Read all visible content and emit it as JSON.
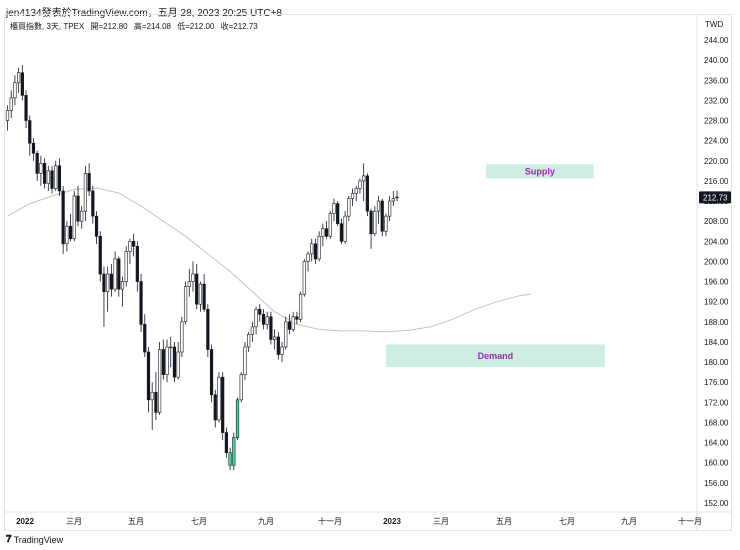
{
  "header": {
    "caption": "jen4134發表於TradingView.com，五月 28, 2023 20:25 UTC+8"
  },
  "legend": {
    "symbol": "櫃買指數, 3天, TPEX",
    "open": "開=212.80",
    "high": "高=214.08",
    "low": "低=212.00",
    "close": "收=212.73"
  },
  "currency": "TWD",
  "footer": {
    "brand": "TradingView"
  },
  "chart_data": {
    "type": "candlestick",
    "y_range": [
      150,
      246
    ],
    "y_ticks": [
      244,
      240,
      236,
      232,
      228,
      224,
      220,
      216,
      212,
      208,
      204,
      200,
      196,
      192,
      188,
      184,
      180,
      176,
      172,
      168,
      164,
      160,
      156,
      152
    ],
    "last_price_label": "212.73",
    "x_tick_labels": [
      "2022",
      "三月",
      "五月",
      "七月",
      "九月",
      "十一月",
      "2023",
      "三月",
      "五月",
      "七月",
      "九月",
      "十一月"
    ],
    "moving_average": [
      [
        0,
        209.0
      ],
      [
        6,
        211.5
      ],
      [
        12,
        213.0
      ],
      [
        18,
        214.3
      ],
      [
        24,
        214.6
      ],
      [
        30,
        213.6
      ],
      [
        36,
        211.0
      ],
      [
        42,
        208.0
      ],
      [
        48,
        205.0
      ],
      [
        54,
        201.5
      ],
      [
        60,
        198.0
      ],
      [
        66,
        194.0
      ],
      [
        72,
        190.0
      ],
      [
        78,
        187.5
      ],
      [
        84,
        186.5
      ],
      [
        90,
        186.2
      ],
      [
        96,
        186.2
      ],
      [
        102,
        186.0
      ],
      [
        108,
        186.3
      ],
      [
        114,
        187.0
      ],
      [
        120,
        188.5
      ],
      [
        126,
        190.5
      ],
      [
        132,
        192.0
      ],
      [
        138,
        193.2
      ],
      [
        141,
        193.5
      ]
    ],
    "zones": [
      {
        "label": "Supply",
        "y_low": 216.5,
        "y_high": 219.3,
        "x_from": 129,
        "x_to": 158
      },
      {
        "label": "Demand",
        "y_low": 179.0,
        "y_high": 183.5,
        "x_from": 102,
        "x_to": 161
      }
    ],
    "colors": {
      "up": "#ffffff",
      "down": "#131722",
      "wick": "#131722",
      "ma": "#c4c4c4",
      "zone_fill": "#cdece3",
      "zone_text": "#9c27b0",
      "highlight": "#4cd7a8"
    },
    "candles": [
      [
        228.0,
        231.0,
        226.0,
        230.0
      ],
      [
        230.0,
        234.0,
        228.5,
        232.5
      ],
      [
        232.5,
        237.0,
        231.0,
        235.5
      ],
      [
        235.5,
        238.5,
        233.5,
        237.5
      ],
      [
        237.5,
        239.0,
        232.0,
        233.0
      ],
      [
        233.0,
        234.0,
        226.5,
        228.0
      ],
      [
        228.0,
        229.0,
        221.0,
        223.5
      ],
      [
        223.5,
        224.5,
        220.0,
        221.5
      ],
      [
        221.5,
        222.0,
        216.0,
        217.5
      ],
      [
        217.5,
        221.0,
        215.0,
        219.5
      ],
      [
        219.5,
        220.5,
        214.5,
        215.5
      ],
      [
        215.5,
        219.0,
        214.0,
        218.0
      ],
      [
        218.0,
        219.0,
        213.5,
        214.5
      ],
      [
        214.5,
        220.0,
        214.0,
        219.0
      ],
      [
        219.0,
        220.5,
        213.0,
        214.0
      ],
      [
        214.0,
        215.0,
        201.5,
        203.5
      ],
      [
        203.5,
        208.0,
        202.0,
        207.0
      ],
      [
        207.0,
        209.5,
        204.0,
        204.5
      ],
      [
        204.5,
        214.0,
        204.0,
        213.0
      ],
      [
        213.0,
        215.0,
        207.0,
        208.0
      ],
      [
        208.0,
        211.0,
        206.5,
        210.0
      ],
      [
        210.0,
        219.0,
        208.0,
        217.5
      ],
      [
        217.5,
        219.5,
        213.0,
        214.0
      ],
      [
        214.0,
        215.0,
        207.5,
        209.0
      ],
      [
        209.0,
        210.0,
        203.5,
        205.0
      ],
      [
        205.0,
        206.0,
        196.0,
        197.5
      ],
      [
        197.5,
        199.0,
        187.0,
        194.0
      ],
      [
        194.0,
        199.0,
        190.0,
        197.5
      ],
      [
        197.5,
        199.5,
        193.0,
        194.5
      ],
      [
        194.5,
        202.0,
        194.0,
        200.5
      ],
      [
        200.5,
        201.0,
        193.0,
        194.5
      ],
      [
        194.5,
        197.0,
        191.0,
        196.0
      ],
      [
        196.0,
        203.0,
        195.0,
        202.0
      ],
      [
        202.0,
        204.5,
        199.5,
        204.0
      ],
      [
        204.0,
        205.5,
        201.0,
        203.0
      ],
      [
        203.0,
        204.0,
        194.0,
        196.0
      ],
      [
        196.0,
        197.5,
        186.0,
        187.5
      ],
      [
        187.5,
        189.5,
        181.0,
        182.0
      ],
      [
        182.0,
        183.0,
        170.0,
        172.5
      ],
      [
        172.5,
        176.0,
        166.5,
        174.0
      ],
      [
        174.0,
        178.0,
        168.5,
        170.0
      ],
      [
        170.0,
        184.0,
        169.5,
        182.5
      ],
      [
        182.5,
        184.5,
        176.5,
        177.5
      ],
      [
        177.5,
        184.5,
        176.0,
        183.0
      ],
      [
        183.0,
        185.0,
        179.0,
        183.0
      ],
      [
        183.0,
        184.0,
        176.0,
        177.0
      ],
      [
        177.0,
        184.0,
        176.5,
        182.0
      ],
      [
        182.0,
        189.0,
        181.0,
        188.0
      ],
      [
        188.0,
        196.0,
        187.5,
        195.0
      ],
      [
        195.0,
        198.5,
        193.0,
        196.0
      ],
      [
        196.0,
        200.0,
        194.0,
        197.5
      ],
      [
        197.5,
        199.5,
        190.5,
        191.5
      ],
      [
        191.5,
        196.0,
        190.0,
        195.5
      ],
      [
        195.5,
        197.5,
        190.0,
        190.5
      ],
      [
        190.5,
        191.5,
        181.0,
        182.5
      ],
      [
        182.5,
        183.5,
        172.0,
        173.5
      ],
      [
        173.5,
        174.5,
        167.0,
        168.5
      ],
      [
        168.5,
        178.0,
        168.0,
        177.0
      ],
      [
        177.0,
        178.0,
        164.5,
        166.0
      ],
      [
        166.0,
        167.0,
        161.0,
        162.0
      ],
      [
        162.0,
        163.0,
        158.5,
        159.5
      ],
      [
        159.5,
        166.0,
        158.5,
        165.0
      ],
      [
        165.0,
        173.0,
        164.5,
        172.5
      ],
      [
        172.5,
        178.0,
        172.0,
        177.5
      ],
      [
        177.5,
        184.0,
        176.5,
        183.0
      ],
      [
        183.0,
        186.0,
        182.0,
        185.5
      ],
      [
        185.5,
        188.0,
        184.0,
        187.0
      ],
      [
        187.0,
        191.0,
        185.5,
        190.5
      ],
      [
        190.5,
        191.5,
        188.0,
        189.5
      ],
      [
        189.5,
        190.5,
        186.5,
        187.5
      ],
      [
        187.5,
        190.0,
        186.5,
        189.0
      ],
      [
        189.0,
        190.0,
        183.5,
        184.5
      ],
      [
        184.5,
        186.5,
        182.5,
        185.0
      ],
      [
        185.0,
        186.0,
        180.5,
        181.5
      ],
      [
        181.5,
        184.0,
        180.0,
        183.0
      ],
      [
        183.0,
        189.0,
        182.5,
        188.0
      ],
      [
        188.0,
        189.5,
        185.5,
        186.5
      ],
      [
        186.5,
        190.0,
        186.0,
        189.0
      ],
      [
        189.0,
        190.0,
        187.5,
        188.5
      ],
      [
        188.5,
        194.0,
        188.0,
        193.5
      ],
      [
        193.5,
        200.5,
        193.0,
        200.0
      ],
      [
        200.0,
        202.0,
        198.0,
        201.5
      ],
      [
        201.5,
        204.5,
        200.0,
        203.5
      ],
      [
        203.5,
        204.5,
        199.5,
        200.5
      ],
      [
        200.5,
        206.0,
        200.0,
        205.0
      ],
      [
        205.0,
        207.5,
        203.0,
        206.5
      ],
      [
        206.5,
        208.0,
        204.5,
        205.0
      ],
      [
        205.0,
        210.0,
        204.5,
        209.5
      ],
      [
        209.5,
        212.5,
        208.0,
        211.5
      ],
      [
        211.5,
        212.0,
        207.0,
        207.5
      ],
      [
        207.5,
        208.5,
        203.5,
        204.0
      ],
      [
        204.0,
        210.0,
        203.5,
        209.0
      ],
      [
        209.0,
        213.0,
        208.0,
        212.5
      ],
      [
        212.5,
        214.5,
        211.0,
        213.5
      ],
      [
        213.5,
        215.0,
        212.0,
        214.5
      ],
      [
        214.5,
        216.5,
        213.5,
        216.0
      ],
      [
        216.0,
        219.5,
        212.0,
        217.0
      ],
      [
        217.0,
        217.5,
        209.0,
        210.0
      ],
      [
        210.0,
        210.5,
        202.5,
        205.5
      ],
      [
        205.5,
        211.0,
        205.0,
        210.0
      ],
      [
        210.0,
        213.0,
        207.5,
        212.0
      ],
      [
        212.0,
        212.5,
        205.0,
        206.0
      ],
      [
        206.0,
        209.5,
        205.0,
        209.0
      ],
      [
        209.0,
        213.0,
        208.0,
        212.0
      ],
      [
        212.0,
        214.0,
        211.0,
        212.5
      ],
      [
        212.8,
        214.08,
        212.0,
        212.73
      ]
    ]
  }
}
